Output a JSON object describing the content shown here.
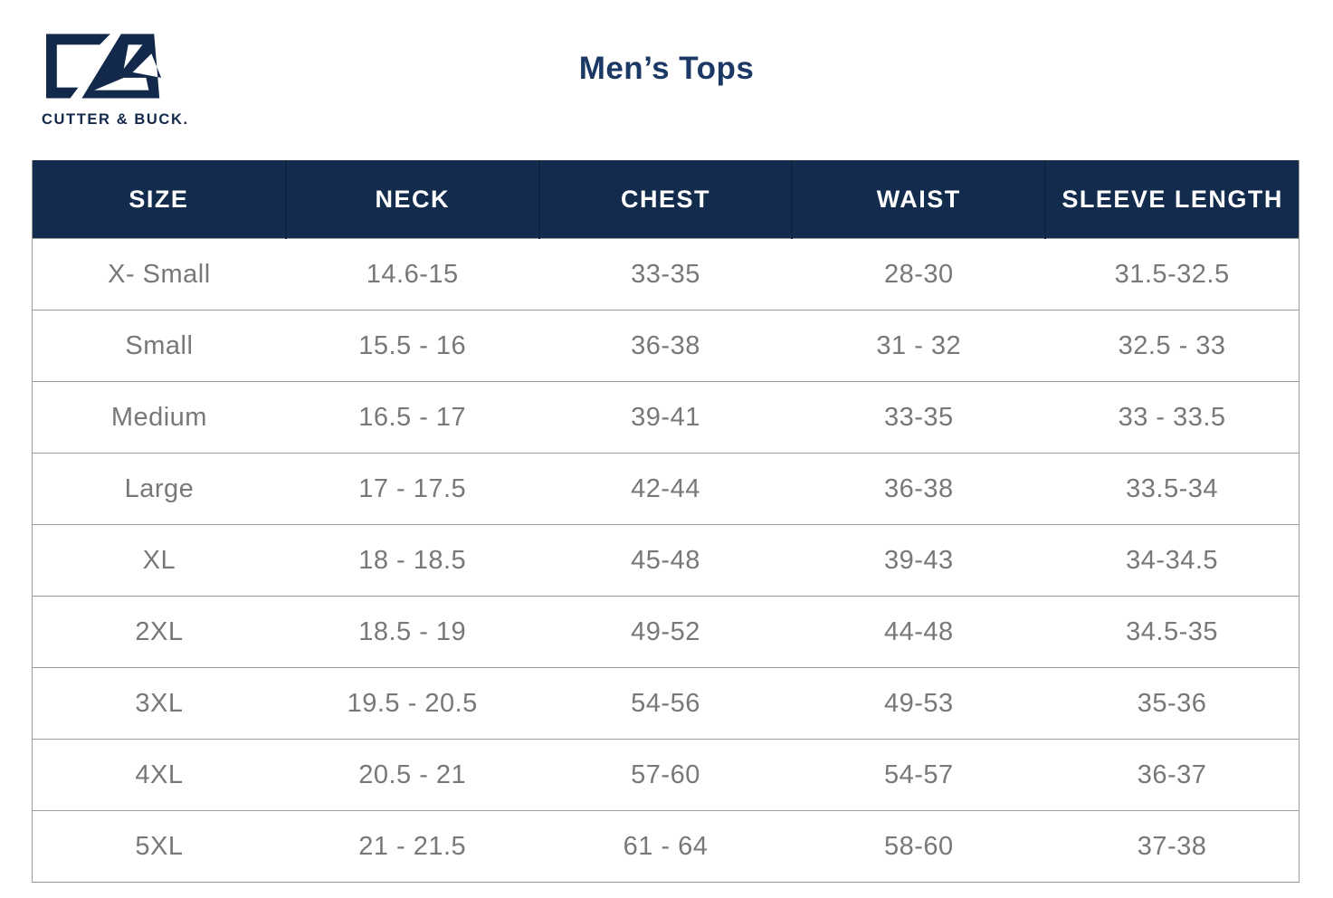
{
  "brand": {
    "logo_mark": "cutter-buck-cb-monogram",
    "wordmark": "CUTTER & BUCK."
  },
  "page": {
    "title": "Men’s Tops"
  },
  "colors": {
    "navy_logo": "#13294B",
    "header_bg": "#132C4D",
    "title_text": "#1C3966",
    "body_text": "#77787B",
    "grid_line": "#9E9E9E"
  },
  "table": {
    "columns": [
      "SIZE",
      "NECK",
      "CHEST",
      "WAIST",
      "SLEEVE LENGTH"
    ],
    "rows": [
      [
        "X- Small",
        "14.6-15",
        "33-35",
        "28-30",
        "31.5-32.5"
      ],
      [
        "Small",
        "15.5 - 16",
        "36-38",
        "31 - 32",
        "32.5 - 33"
      ],
      [
        "Medium",
        "16.5 - 17",
        "39-41",
        "33-35",
        "33 - 33.5"
      ],
      [
        "Large",
        "17 - 17.5",
        "42-44",
        "36-38",
        "33.5-34"
      ],
      [
        "XL",
        "18 - 18.5",
        "45-48",
        "39-43",
        "34-34.5"
      ],
      [
        "2XL",
        "18.5 - 19",
        "49-52",
        "44-48",
        "34.5-35"
      ],
      [
        "3XL",
        "19.5 - 20.5",
        "54-56",
        "49-53",
        "35-36"
      ],
      [
        "4XL",
        "20.5 - 21",
        "57-60",
        "54-57",
        "36-37"
      ],
      [
        "5XL",
        "21 - 21.5",
        "61 - 64",
        "58-60",
        "37-38"
      ]
    ]
  }
}
